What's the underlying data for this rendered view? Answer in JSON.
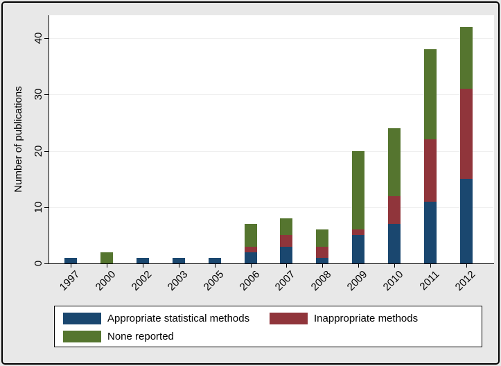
{
  "chart_data": {
    "type": "bar",
    "stacked": true,
    "title": "",
    "xlabel": "",
    "ylabel": "Number of publications",
    "categories": [
      "1997",
      "2000",
      "2002",
      "2003",
      "2005",
      "2006",
      "2007",
      "2008",
      "2009",
      "2010",
      "2011",
      "2012"
    ],
    "series": [
      {
        "name": "Appropriate statistical methods",
        "color": "#1a476f",
        "values": [
          1,
          0,
          1,
          1,
          1,
          2,
          3,
          1,
          5,
          7,
          11,
          15
        ]
      },
      {
        "name": "Inappropriate methods",
        "color": "#90353b",
        "values": [
          0,
          0,
          0,
          0,
          0,
          1,
          2,
          2,
          1,
          5,
          11,
          16
        ]
      },
      {
        "name": "None reported",
        "color": "#55752f",
        "values": [
          0,
          2,
          0,
          0,
          0,
          4,
          3,
          3,
          14,
          12,
          16,
          11
        ]
      }
    ],
    "totals": [
      1,
      2,
      1,
      1,
      1,
      7,
      8,
      6,
      20,
      24,
      38,
      42
    ],
    "y_ticks": [
      0,
      10,
      20,
      30,
      40
    ],
    "ylim": [
      0,
      44
    ],
    "grid": true,
    "legend_position": "bottom",
    "background_color": "#e8e8e8",
    "plot_background_color": "#ffffff"
  }
}
